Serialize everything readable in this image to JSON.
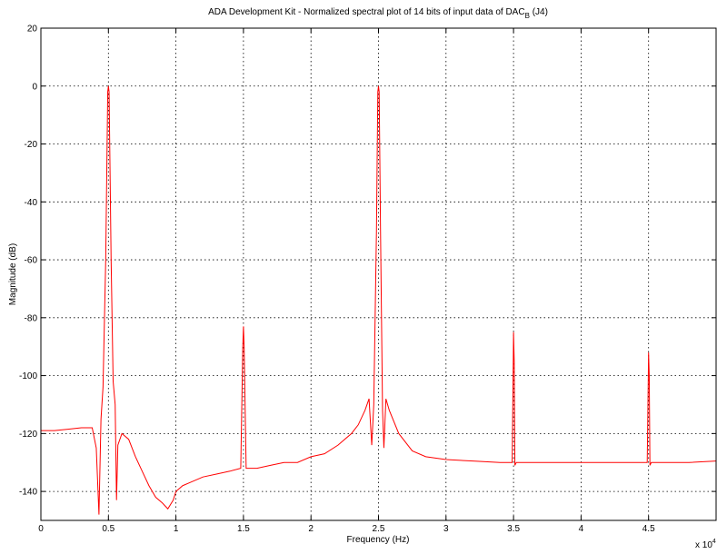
{
  "chart_data": {
    "type": "line",
    "title_parts": [
      "ADA Development Kit - Normalized spectral plot of 14 bits of input data of DAC",
      "B",
      " (J4)"
    ],
    "x_label": "Frequency (Hz)",
    "y_label": "Magnitude (dB)",
    "x_multiplier": {
      "base": "x 10",
      "exponent": "4"
    },
    "color": "#ff0000",
    "grid": true,
    "xlim": [
      0,
      50000
    ],
    "ylim": [
      -150,
      20
    ],
    "xticks": [
      0,
      {
        "value": 5000,
        "label": "0.5"
      },
      {
        "value": 10000,
        "label": "1"
      },
      {
        "value": 15000,
        "label": "1.5"
      },
      {
        "value": 20000,
        "label": "2"
      },
      {
        "value": 25000,
        "label": "2.5"
      },
      {
        "value": 30000,
        "label": "3"
      },
      {
        "value": 35000,
        "label": "3.5"
      },
      {
        "value": 40000,
        "label": "4"
      },
      {
        "value": 45000,
        "label": "4.5"
      }
    ],
    "yticks": [
      20,
      0,
      -20,
      -40,
      -60,
      -80,
      -100,
      -120,
      -140
    ],
    "x": [
      0,
      1000,
      2000,
      3000,
      3800,
      4100,
      4300,
      4450,
      4600,
      4800,
      4950,
      5000,
      5050,
      5200,
      5350,
      5500,
      5600,
      5700,
      6000,
      6500,
      7000,
      7500,
      8000,
      8500,
      9000,
      9400,
      9800,
      10000,
      10500,
      11000,
      12000,
      13000,
      14000,
      14800,
      14950,
      15000,
      15050,
      15200,
      16000,
      17000,
      18000,
      19000,
      20000,
      21000,
      22000,
      23000,
      23500,
      24000,
      24300,
      24500,
      24650,
      24850,
      24950,
      25000,
      25050,
      25150,
      25300,
      25400,
      25550,
      25800,
      26500,
      27500,
      28500,
      30000,
      32000,
      34000,
      34900,
      34980,
      35000,
      35050,
      35100,
      35200,
      38000,
      42000,
      44900,
      44980,
      45000,
      45050,
      45100,
      45200,
      48000,
      50000
    ],
    "values": [
      -119,
      -119,
      -118.5,
      -118,
      -118,
      -125,
      -148,
      -115,
      -104,
      -60,
      -2,
      0,
      -2,
      -60,
      -102,
      -110,
      -143,
      -124,
      -120,
      -122,
      -128,
      -133,
      -138,
      -142,
      -144,
      -146,
      -143,
      -140,
      -138,
      -137,
      -135,
      -134,
      -133,
      -132,
      -90,
      -83,
      -90,
      -132,
      -132,
      -131,
      -130,
      -130,
      -128,
      -127,
      -124,
      -120,
      -117,
      -112,
      -108,
      -124,
      -110,
      -50,
      -2,
      0,
      -2,
      -50,
      -112,
      -125,
      -108,
      -112,
      -120,
      -126,
      -128,
      -129,
      -129.5,
      -130,
      -130,
      -95,
      -85,
      -95,
      -131,
      -130,
      -130,
      -130,
      -130,
      -100,
      -92,
      -100,
      -131,
      -130,
      -130,
      -129.5
    ]
  }
}
